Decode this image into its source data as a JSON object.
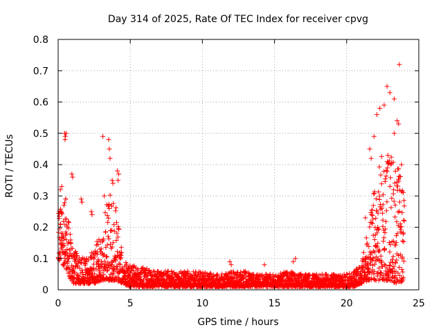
{
  "chart_data": {
    "type": "scatter",
    "title": "Day 314 of 2025, Rate Of TEC Index for receiver cpvg",
    "xlabel": "GPS time / hours",
    "ylabel": "ROTI / TECUs",
    "xlim": [
      0,
      25
    ],
    "ylim": [
      0,
      0.8
    ],
    "xticks": [
      0,
      5,
      10,
      15,
      20,
      25
    ],
    "xtick_labels": [
      "0",
      "5",
      "10",
      "15",
      "20",
      "25"
    ],
    "yticks": [
      0,
      0.1,
      0.2,
      0.3,
      0.4,
      0.5,
      0.6,
      0.7,
      0.8
    ],
    "ytick_labels": [
      "0",
      "0.1",
      "0.2",
      "0.3",
      "0.4",
      "0.5",
      "0.6",
      "0.7",
      "0.8"
    ],
    "grid": true,
    "marker": "plus",
    "color": "#ff0000",
    "series": [
      {
        "name": "ROTI",
        "envelope_x": [
          0,
          0.5,
          1,
          1.5,
          2,
          2.5,
          3,
          3.5,
          4,
          4.5,
          5,
          6,
          7,
          8,
          9,
          10,
          11,
          12,
          13,
          14,
          15,
          16,
          17,
          18,
          19,
          20,
          20.5,
          21,
          21.5,
          22,
          22.5,
          23,
          23.5,
          24
        ],
        "envelope_low": [
          0.1,
          0.07,
          0.02,
          0.02,
          0.02,
          0.02,
          0.03,
          0.03,
          0.03,
          0.02,
          0.01,
          0.01,
          0.01,
          0.01,
          0.01,
          0.01,
          0.01,
          0.01,
          0.01,
          0.01,
          0.01,
          0.01,
          0.01,
          0.01,
          0.01,
          0.01,
          0.01,
          0.02,
          0.03,
          0.03,
          0.03,
          0.03,
          0.02,
          0.03
        ],
        "envelope_high": [
          0.26,
          0.3,
          0.14,
          0.1,
          0.11,
          0.14,
          0.18,
          0.32,
          0.28,
          0.1,
          0.08,
          0.07,
          0.06,
          0.06,
          0.06,
          0.06,
          0.05,
          0.06,
          0.06,
          0.05,
          0.05,
          0.06,
          0.05,
          0.05,
          0.05,
          0.05,
          0.06,
          0.08,
          0.2,
          0.35,
          0.45,
          0.45,
          0.42,
          0.3
        ],
        "outliers": [
          [
            0.08,
            0.25
          ],
          [
            0.15,
            0.32
          ],
          [
            0.25,
            0.33
          ],
          [
            0.45,
            0.5
          ],
          [
            0.48,
            0.48
          ],
          [
            0.5,
            0.49
          ],
          [
            0.55,
            0.5
          ],
          [
            0.52,
            0.29
          ],
          [
            0.4,
            0.27
          ],
          [
            0.95,
            0.37
          ],
          [
            1.0,
            0.36
          ],
          [
            1.6,
            0.29
          ],
          [
            1.65,
            0.28
          ],
          [
            2.3,
            0.25
          ],
          [
            2.35,
            0.24
          ],
          [
            3.1,
            0.49
          ],
          [
            3.2,
            0.3
          ],
          [
            3.5,
            0.48
          ],
          [
            3.55,
            0.45
          ],
          [
            3.6,
            0.42
          ],
          [
            3.75,
            0.35
          ],
          [
            3.8,
            0.34
          ],
          [
            4.1,
            0.38
          ],
          [
            4.2,
            0.37
          ],
          [
            4.15,
            0.35
          ],
          [
            11.9,
            0.09
          ],
          [
            12.0,
            0.08
          ],
          [
            14.3,
            0.08
          ],
          [
            16.3,
            0.09
          ],
          [
            16.45,
            0.1
          ],
          [
            21.6,
            0.45
          ],
          [
            21.7,
            0.42
          ],
          [
            22.3,
            0.58
          ],
          [
            22.6,
            0.59
          ],
          [
            22.8,
            0.65
          ],
          [
            23.0,
            0.63
          ],
          [
            23.3,
            0.61
          ],
          [
            23.5,
            0.54
          ],
          [
            23.6,
            0.53
          ],
          [
            23.65,
            0.72
          ],
          [
            23.3,
            0.5
          ],
          [
            22.1,
            0.56
          ],
          [
            21.9,
            0.49
          ],
          [
            23.8,
            0.4
          ],
          [
            21.3,
            0.23
          ]
        ]
      }
    ]
  }
}
